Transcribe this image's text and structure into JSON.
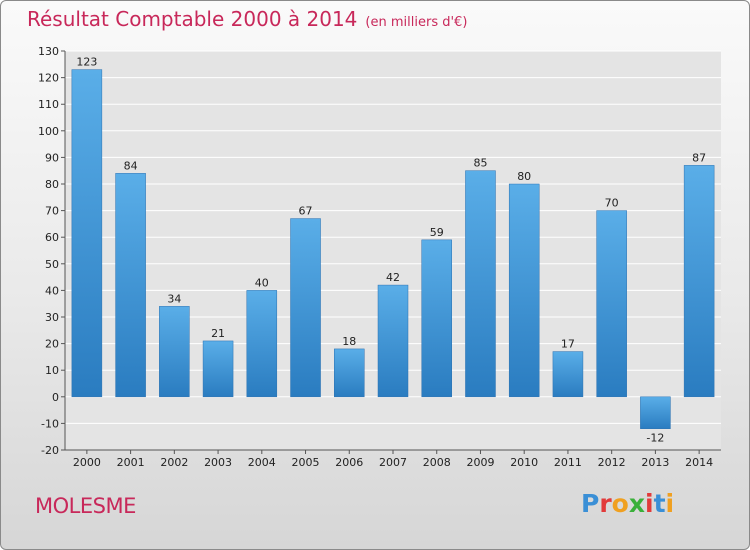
{
  "header": {
    "title": "Résultat Comptable 2000 à 2014",
    "subtitle": "(en milliers d'€)"
  },
  "footer": {
    "place": "MOLESME",
    "logo_letters": [
      "P",
      "r",
      "o",
      "x",
      "i",
      "t",
      "i"
    ],
    "logo_colors": [
      "#3a8fd6",
      "#e23a3a",
      "#f0a020",
      "#3ab03a",
      "#e23a3a",
      "#3a8fd6",
      "#f0a020"
    ]
  },
  "chart_data": {
    "type": "bar",
    "categories": [
      "2000",
      "2001",
      "2002",
      "2003",
      "2004",
      "2005",
      "2006",
      "2007",
      "2008",
      "2009",
      "2010",
      "2011",
      "2012",
      "2013",
      "2014"
    ],
    "values": [
      123,
      84,
      34,
      21,
      40,
      67,
      18,
      42,
      59,
      85,
      80,
      17,
      70,
      -12,
      87
    ],
    "ylim": [
      -20,
      130
    ],
    "yticks": [
      -20,
      -10,
      0,
      10,
      20,
      30,
      40,
      50,
      60,
      70,
      80,
      90,
      100,
      110,
      120,
      130
    ],
    "grid": true,
    "bar_color_light": "#5aaee8",
    "bar_color_dark": "#2a7cc0"
  }
}
